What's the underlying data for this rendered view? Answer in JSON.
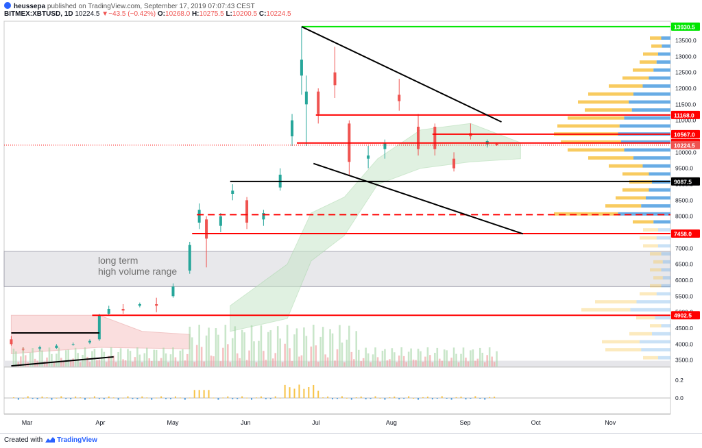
{
  "header": {
    "author": "heussepa",
    "published": "published on TradingView.com, September 17, 2019 07:07:43 CEST",
    "symbol": "BITMEX:XBTUSD, 1D",
    "last": "10224.5",
    "change": "−43.5 (−0.42%)",
    "o_label": "O:",
    "o": "10268.0",
    "h_label": "H:",
    "h": "10275.5",
    "l_label": "L:",
    "l": "10200.5",
    "c_label": "C:",
    "c": "10224.5"
  },
  "footer": {
    "created_with": "Created with",
    "brand": "TradingView"
  },
  "colors": {
    "up": "#26a69a",
    "down": "#ef5350",
    "red_line": "#ff0000",
    "green_line": "#00e600",
    "baseline": "#3bbdb3",
    "volume_profile_up": "#f7c244",
    "volume_profile_down": "#4d9de0"
  },
  "chart_data": {
    "type": "candlestick",
    "time_axis": [
      "Mar",
      "Apr",
      "May",
      "Jun",
      "Jul",
      "Aug",
      "Sep",
      "Oct",
      "Nov"
    ],
    "price_axis": [
      "13500.0",
      "13000.0",
      "12500.0",
      "12000.0",
      "11500.0",
      "11000.0",
      "10500.0",
      "10000.0",
      "9500.0",
      "9000.0",
      "8500.0",
      "8000.0",
      "7500.0",
      "7000.0",
      "6500.0",
      "6000.0",
      "5500.0",
      "5000.0",
      "4500.0",
      "4000.0",
      "3500.0"
    ],
    "ylim": [
      3300,
      14100
    ],
    "price_tags": [
      {
        "value": 13930.5,
        "label": "13930.5",
        "style": "green"
      },
      {
        "value": 11168.0,
        "label": "11168.0",
        "style": "red"
      },
      {
        "value": 10567.0,
        "label": "10567.0",
        "style": "red"
      },
      {
        "value": 10292.0,
        "label": "10292.0",
        "style": "red"
      },
      {
        "value": 10224.5,
        "label": "10224.5",
        "style": "last"
      },
      {
        "value": 9087.5,
        "label": "9087.5",
        "style": "black"
      },
      {
        "value": 7458.0,
        "label": "7458.0",
        "style": "red"
      },
      {
        "value": 4902.5,
        "label": "4902.5",
        "style": "red"
      }
    ],
    "horizontal_levels": [
      {
        "value": 13930.5,
        "from": "2019-06-26",
        "color": "green"
      },
      {
        "value": 11168.0,
        "from": "2019-07-02",
        "color": "red"
      },
      {
        "value": 10567.0,
        "from": "2019-08-20",
        "color": "red"
      },
      {
        "value": 10292.0,
        "from": "2019-06-24",
        "color": "red"
      },
      {
        "value": 9087.5,
        "from": "2019-05-27",
        "color": "black"
      },
      {
        "value": 8050.0,
        "from": "2019-05-13",
        "color": "red",
        "dashed": true
      },
      {
        "value": 7458.0,
        "from": "2019-05-11",
        "color": "red"
      },
      {
        "value": 4902.5,
        "from": "2019-03-30",
        "color": "red"
      }
    ],
    "trendlines": [
      {
        "from": [
          "2019-06-26",
          13930
        ],
        "to": [
          "2019-09-18",
          10950
        ],
        "color": "black"
      },
      {
        "from": [
          "2019-07-01",
          9650
        ],
        "to": [
          "2019-09-27",
          7450
        ],
        "color": "black"
      },
      {
        "from": [
          "2019-02-24",
          4350
        ],
        "to": [
          "2019-04-02",
          4350
        ],
        "color": "black"
      },
      {
        "from": [
          "2019-02-24",
          3320
        ],
        "to": [
          "2019-04-08",
          3600
        ],
        "color": "black"
      }
    ],
    "range_box": {
      "label_line1": "long term",
      "label_line2": "high volume range",
      "from": 5800,
      "to": 6900
    },
    "ohlc_daily": [
      {
        "date": "2019-02-24",
        "o": 4150,
        "h": 4250,
        "l": 3950,
        "c": 4000
      },
      {
        "date": "2019-03-01",
        "o": 3850,
        "h": 3900,
        "l": 3780,
        "c": 3830
      },
      {
        "date": "2019-03-08",
        "o": 3860,
        "h": 3950,
        "l": 3800,
        "c": 3900
      },
      {
        "date": "2019-03-15",
        "o": 3880,
        "h": 4000,
        "l": 3850,
        "c": 3950
      },
      {
        "date": "2019-03-22",
        "o": 3980,
        "h": 4050,
        "l": 3950,
        "c": 4000
      },
      {
        "date": "2019-03-29",
        "o": 4050,
        "h": 4150,
        "l": 4000,
        "c": 4100
      },
      {
        "date": "2019-04-02",
        "o": 4150,
        "h": 4950,
        "l": 4100,
        "c": 4900
      },
      {
        "date": "2019-04-06",
        "o": 4950,
        "h": 5200,
        "l": 4900,
        "c": 5100
      },
      {
        "date": "2019-04-12",
        "o": 5100,
        "h": 5250,
        "l": 4950,
        "c": 5050
      },
      {
        "date": "2019-04-19",
        "o": 5200,
        "h": 5300,
        "l": 5150,
        "c": 5250
      },
      {
        "date": "2019-04-26",
        "o": 5250,
        "h": 5450,
        "l": 5000,
        "c": 5200
      },
      {
        "date": "2019-05-03",
        "o": 5500,
        "h": 5900,
        "l": 5450,
        "c": 5800
      },
      {
        "date": "2019-05-10",
        "o": 6300,
        "h": 7200,
        "l": 6200,
        "c": 7100
      },
      {
        "date": "2019-05-14",
        "o": 7800,
        "h": 8400,
        "l": 7600,
        "c": 8200
      },
      {
        "date": "2019-05-17",
        "o": 7900,
        "h": 8000,
        "l": 6400,
        "c": 7300
      },
      {
        "date": "2019-05-23",
        "o": 7700,
        "h": 8100,
        "l": 7500,
        "c": 8000
      },
      {
        "date": "2019-05-28",
        "o": 8700,
        "h": 9000,
        "l": 8500,
        "c": 8800
      },
      {
        "date": "2019-06-03",
        "o": 8500,
        "h": 8600,
        "l": 7600,
        "c": 7800
      },
      {
        "date": "2019-06-10",
        "o": 7900,
        "h": 8200,
        "l": 7700,
        "c": 8100
      },
      {
        "date": "2019-06-17",
        "o": 8900,
        "h": 9500,
        "l": 8800,
        "c": 9300
      },
      {
        "date": "2019-06-22",
        "o": 10500,
        "h": 11200,
        "l": 10200,
        "c": 11000
      },
      {
        "date": "2019-06-26",
        "o": 12400,
        "h": 13930,
        "l": 11800,
        "c": 12900
      },
      {
        "date": "2019-06-28",
        "o": 11500,
        "h": 12400,
        "l": 10200,
        "c": 11900
      },
      {
        "date": "2019-07-03",
        "o": 11900,
        "h": 12000,
        "l": 10900,
        "c": 11200
      },
      {
        "date": "2019-07-10",
        "o": 12500,
        "h": 13300,
        "l": 11700,
        "c": 12100
      },
      {
        "date": "2019-07-16",
        "o": 10900,
        "h": 11000,
        "l": 9300,
        "c": 9700
      },
      {
        "date": "2019-07-24",
        "o": 9800,
        "h": 10200,
        "l": 9500,
        "c": 9900
      },
      {
        "date": "2019-07-31",
        "o": 10100,
        "h": 10400,
        "l": 9800,
        "c": 10300
      },
      {
        "date": "2019-08-06",
        "o": 11800,
        "h": 12300,
        "l": 11300,
        "c": 11600
      },
      {
        "date": "2019-08-14",
        "o": 10800,
        "h": 11200,
        "l": 9900,
        "c": 10100
      },
      {
        "date": "2019-08-21",
        "o": 10800,
        "h": 10900,
        "l": 9900,
        "c": 10100
      },
      {
        "date": "2019-08-29",
        "o": 9800,
        "h": 10000,
        "l": 9400,
        "c": 9500
      },
      {
        "date": "2019-09-05",
        "o": 10600,
        "h": 10900,
        "l": 10400,
        "c": 10500
      },
      {
        "date": "2019-09-12",
        "o": 10250,
        "h": 10400,
        "l": 10150,
        "c": 10350
      },
      {
        "date": "2019-09-16",
        "o": 10268,
        "h": 10275.5,
        "l": 10200.5,
        "c": 10224.5
      }
    ],
    "oscillator_axis": [
      "0.2",
      "0.0"
    ]
  }
}
